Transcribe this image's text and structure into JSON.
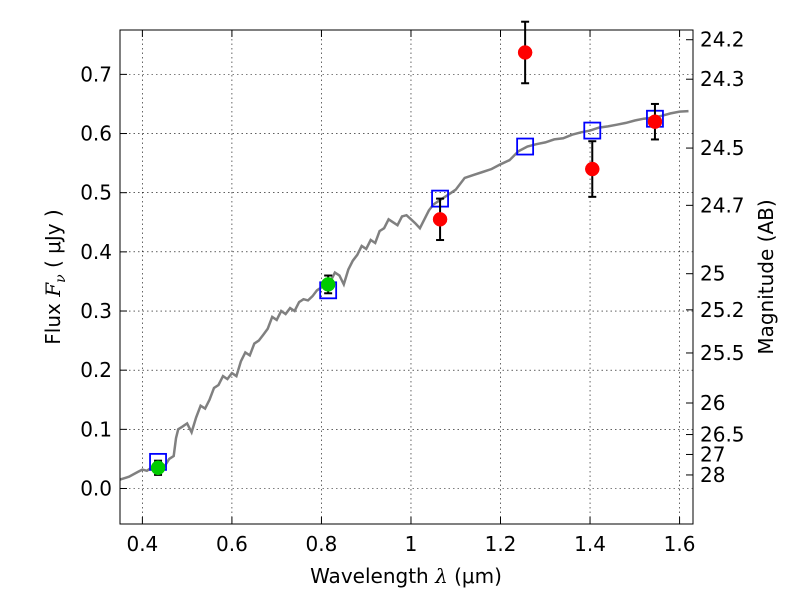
{
  "chart_data": {
    "type": "scatter",
    "title": "",
    "xlabel": {
      "prefix": "Wavelength  ",
      "symbol": "λ",
      "suffix": " (μm)"
    },
    "ylabel": {
      "prefix": "Flux  ",
      "symbol": "F",
      "subscript": "ν",
      "suffix": "  ( μJy )"
    },
    "y2label": "Magnitude (AB)",
    "xlim": [
      0.35,
      1.63
    ],
    "ylim": [
      -0.06,
      0.775
    ],
    "grid": true,
    "x_ticks": [
      {
        "value": 0.4,
        "label": "0.4"
      },
      {
        "value": 0.6,
        "label": "0.6"
      },
      {
        "value": 0.8,
        "label": "0.8"
      },
      {
        "value": 1.0,
        "label": "1"
      },
      {
        "value": 1.2,
        "label": "1.2"
      },
      {
        "value": 1.4,
        "label": "1.4"
      },
      {
        "value": 1.6,
        "label": "1.6"
      }
    ],
    "y_ticks": [
      {
        "value": 0.0,
        "label": "0.0"
      },
      {
        "value": 0.1,
        "label": "0.1"
      },
      {
        "value": 0.2,
        "label": "0.2"
      },
      {
        "value": 0.3,
        "label": "0.3"
      },
      {
        "value": 0.4,
        "label": "0.4"
      },
      {
        "value": 0.5,
        "label": "0.5"
      },
      {
        "value": 0.6,
        "label": "0.6"
      },
      {
        "value": 0.7,
        "label": "0.7"
      }
    ],
    "mag_ticks": [
      {
        "mag": 24.2,
        "label": "24.2"
      },
      {
        "mag": 24.3,
        "label": "24.3"
      },
      {
        "mag": 24.5,
        "label": "24.5"
      },
      {
        "mag": 24.7,
        "label": "24.7"
      },
      {
        "mag": 25.0,
        "label": "25"
      },
      {
        "mag": 25.2,
        "label": "25.2"
      },
      {
        "mag": 25.5,
        "label": "25.5"
      },
      {
        "mag": 26.0,
        "label": "26"
      },
      {
        "mag": 26.5,
        "label": "26.5"
      },
      {
        "mag": 27.0,
        "label": "27"
      },
      {
        "mag": 28.0,
        "label": "28"
      }
    ],
    "sed_model": {
      "color": "#808080",
      "x": [
        0.35,
        0.37,
        0.39,
        0.4,
        0.41,
        0.42,
        0.43,
        0.44,
        0.45,
        0.46,
        0.47,
        0.475,
        0.48,
        0.49,
        0.5,
        0.51,
        0.52,
        0.53,
        0.54,
        0.55,
        0.56,
        0.57,
        0.58,
        0.59,
        0.6,
        0.61,
        0.62,
        0.63,
        0.64,
        0.65,
        0.66,
        0.67,
        0.68,
        0.69,
        0.7,
        0.71,
        0.72,
        0.73,
        0.74,
        0.75,
        0.76,
        0.77,
        0.78,
        0.79,
        0.8,
        0.81,
        0.82,
        0.83,
        0.84,
        0.85,
        0.86,
        0.87,
        0.88,
        0.89,
        0.9,
        0.91,
        0.92,
        0.93,
        0.94,
        0.95,
        0.96,
        0.97,
        0.98,
        0.99,
        1.0,
        1.01,
        1.02,
        1.03,
        1.04,
        1.05,
        1.06,
        1.07,
        1.08,
        1.09,
        1.1,
        1.12,
        1.14,
        1.16,
        1.18,
        1.2,
        1.22,
        1.24,
        1.26,
        1.28,
        1.3,
        1.32,
        1.34,
        1.36,
        1.38,
        1.4,
        1.42,
        1.44,
        1.46,
        1.48,
        1.5,
        1.52,
        1.54,
        1.56,
        1.58,
        1.6,
        1.62
      ],
      "y": [
        0.015,
        0.02,
        0.028,
        0.032,
        0.03,
        0.035,
        0.04,
        0.045,
        0.038,
        0.05,
        0.055,
        0.085,
        0.1,
        0.105,
        0.11,
        0.095,
        0.12,
        0.14,
        0.135,
        0.15,
        0.17,
        0.175,
        0.19,
        0.185,
        0.195,
        0.19,
        0.215,
        0.23,
        0.225,
        0.245,
        0.25,
        0.26,
        0.27,
        0.29,
        0.285,
        0.3,
        0.295,
        0.305,
        0.3,
        0.315,
        0.32,
        0.318,
        0.325,
        0.335,
        0.34,
        0.345,
        0.35,
        0.365,
        0.36,
        0.345,
        0.37,
        0.385,
        0.395,
        0.41,
        0.405,
        0.42,
        0.415,
        0.435,
        0.44,
        0.455,
        0.45,
        0.445,
        0.46,
        0.462,
        0.455,
        0.448,
        0.44,
        0.455,
        0.47,
        0.48,
        0.485,
        0.49,
        0.495,
        0.5,
        0.505,
        0.525,
        0.53,
        0.535,
        0.54,
        0.548,
        0.555,
        0.57,
        0.578,
        0.582,
        0.585,
        0.59,
        0.592,
        0.598,
        0.602,
        0.605,
        0.61,
        0.612,
        0.615,
        0.618,
        0.622,
        0.625,
        0.627,
        0.63,
        0.634,
        0.637,
        0.638
      ]
    },
    "series": [
      {
        "marker": "square",
        "color": "#0000ff",
        "points": [
          {
            "x": 0.435,
            "y": 0.045
          },
          {
            "x": 0.815,
            "y": 0.335
          },
          {
            "x": 1.065,
            "y": 0.49
          },
          {
            "x": 1.255,
            "y": 0.578
          },
          {
            "x": 1.405,
            "y": 0.605
          },
          {
            "x": 1.545,
            "y": 0.625
          }
        ]
      },
      {
        "marker": "circle",
        "color": "#00cc00",
        "points": [
          {
            "x": 0.435,
            "y": 0.035,
            "err": 0.012
          },
          {
            "x": 0.815,
            "y": 0.345,
            "err": 0.015
          }
        ]
      },
      {
        "marker": "circle",
        "color": "#ff0000",
        "points": [
          {
            "x": 1.065,
            "y": 0.455,
            "err": 0.035
          },
          {
            "x": 1.255,
            "y": 0.737,
            "err": 0.052
          },
          {
            "x": 1.405,
            "y": 0.54,
            "err": 0.047
          },
          {
            "x": 1.545,
            "y": 0.62,
            "err": 0.03
          }
        ]
      }
    ]
  }
}
